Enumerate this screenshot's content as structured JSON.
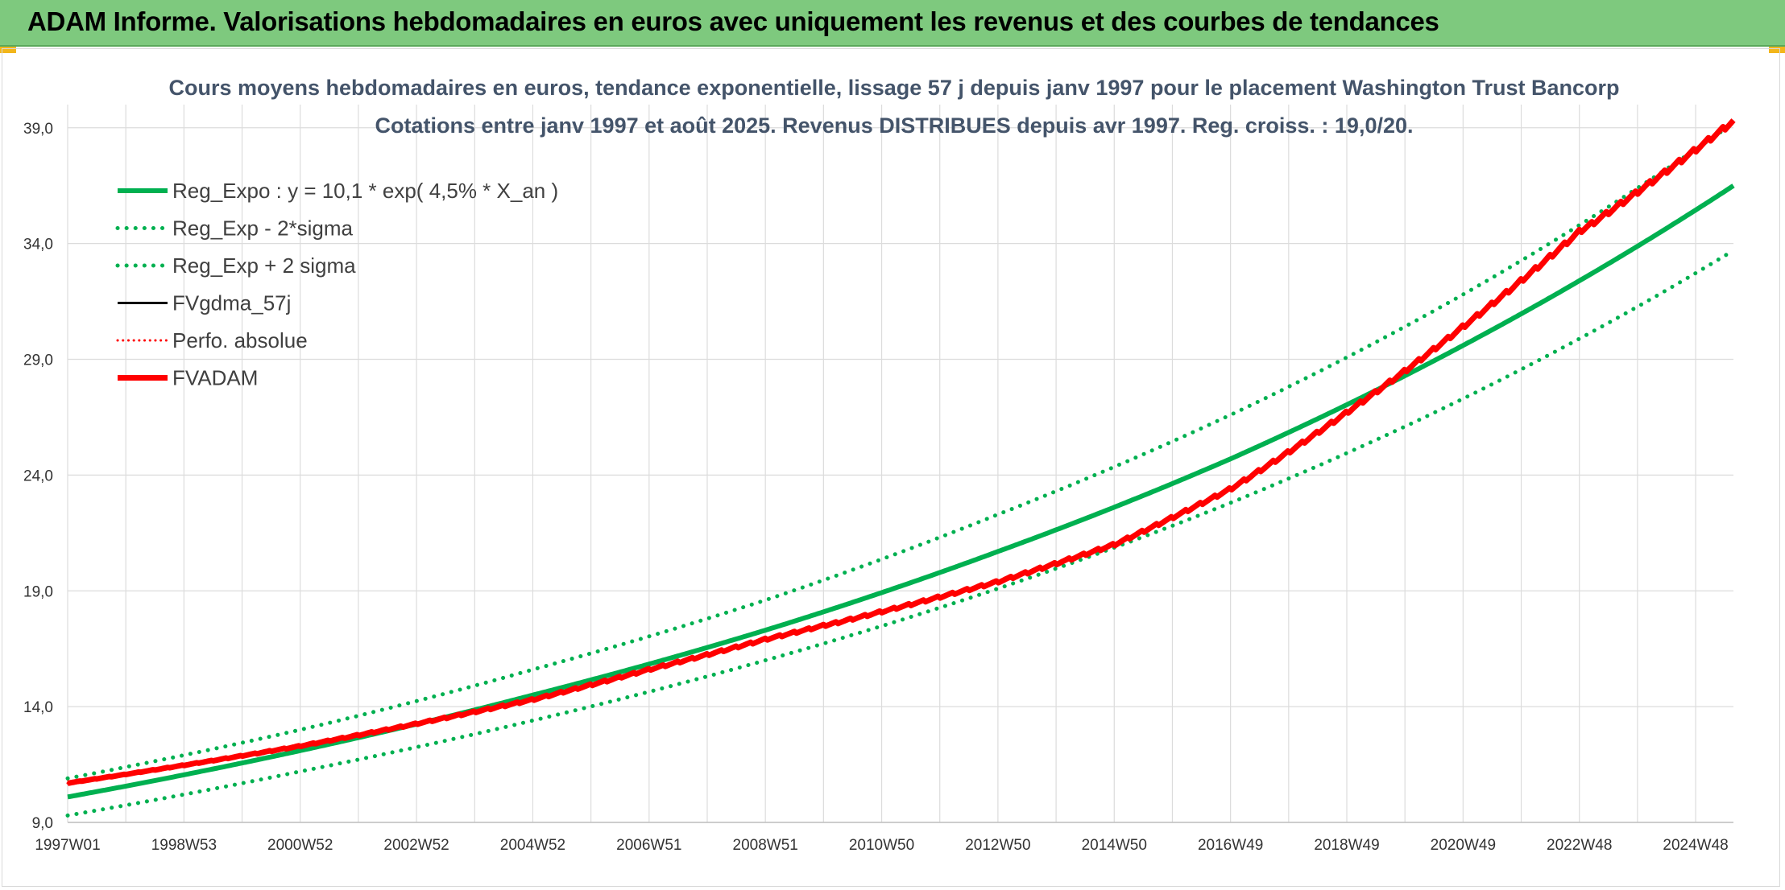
{
  "header": {
    "title": "ADAM Informe. Valorisations hebdomadaires en euros avec uniquement les revenus et des courbes de tendances"
  },
  "colors": {
    "header_bg": "#7ec97e",
    "green": "#00b050",
    "red": "#ff0000",
    "black": "#000000",
    "title_text": "#44546a"
  },
  "chart_data": {
    "type": "line",
    "title": "Cours moyens hebdomadaires en euros, tendance exponentielle, lissage 57 j depuis janv 1997 pour le placement Washington Trust Bancorp",
    "subtitle": "Cotations entre janv 1997 et août 2025. Revenus DISTRIBUES depuis avr 1997. Reg. croiss. : 19,0/20.",
    "xlabel": "",
    "ylabel": "",
    "x_tick_labels": [
      "1997W01",
      "1998W53",
      "2000W52",
      "2002W52",
      "2004W52",
      "2006W51",
      "2008W51",
      "2010W50",
      "2012W50",
      "2014W50",
      "2016W49",
      "2018W49",
      "2020W49",
      "2022W48",
      "2024W48"
    ],
    "x_ticks_year": [
      1997.0,
      1999.0,
      2001.0,
      2003.0,
      2005.0,
      2007.0,
      2009.0,
      2011.0,
      2013.0,
      2015.0,
      2017.0,
      2019.0,
      2021.0,
      2023.0,
      2025.0
    ],
    "xlim": [
      1997.0,
      2025.65
    ],
    "ylim": [
      9.0,
      40.0
    ],
    "y_ticks": [
      9.0,
      14.0,
      19.0,
      24.0,
      29.0,
      34.0,
      39.0
    ],
    "y_tick_labels": [
      "9,0",
      "14,0",
      "19,0",
      "24,0",
      "29,0",
      "34,0",
      "39,0"
    ],
    "grid": true,
    "legend_position": "top-left",
    "series": [
      {
        "name": "Reg_Expo : y = 10,1 * exp( 4,5% *  X_an )",
        "style": "solid",
        "color": "#00b050",
        "width": 6,
        "x": [
          1997.0,
          2001.0,
          2005.0,
          2009.0,
          2013.0,
          2017.0,
          2021.0,
          2025.65
        ],
        "y": [
          10.1,
          12.1,
          14.5,
          17.3,
          20.7,
          24.7,
          29.6,
          36.5
        ]
      },
      {
        "name": "Reg_Exp - 2*sigma",
        "style": "dotted",
        "color": "#00b050",
        "width": 5,
        "x": [
          1997.0,
          2001.0,
          2005.0,
          2009.0,
          2013.0,
          2017.0,
          2021.0,
          2025.65
        ],
        "y": [
          9.3,
          11.2,
          13.4,
          16.0,
          19.1,
          22.8,
          27.3,
          33.7
        ]
      },
      {
        "name": "Reg_Exp + 2 sigma",
        "style": "dotted",
        "color": "#00b050",
        "width": 5,
        "x": [
          1997.0,
          2001.0,
          2005.0,
          2009.0,
          2013.0,
          2017.0,
          2021.0,
          2025.65
        ],
        "y": [
          10.9,
          13.0,
          15.6,
          18.6,
          22.3,
          26.6,
          31.8,
          39.2
        ]
      },
      {
        "name": "FVgdma_57j",
        "style": "solid",
        "color": "#000000",
        "width": 3,
        "x": [
          1997.0,
          2001.0,
          2005.0,
          2007.0,
          2009.0,
          2013.0,
          2015.0,
          2017.0,
          2019.0,
          2021.0,
          2023.0,
          2025.65
        ],
        "y": [
          10.7,
          12.3,
          14.3,
          15.6,
          16.9,
          19.4,
          21.0,
          23.4,
          26.7,
          30.4,
          34.5,
          39.3
        ]
      },
      {
        "name": "Perfo. absolue",
        "style": "dotted",
        "color": "#ff0000",
        "width": 3,
        "x": [
          1997.0,
          2001.0,
          2005.0,
          2007.0,
          2009.0,
          2013.0,
          2015.0,
          2017.0,
          2019.0,
          2021.0,
          2023.0,
          2025.65
        ],
        "y": [
          10.7,
          12.3,
          14.3,
          15.6,
          16.9,
          19.4,
          21.0,
          23.4,
          26.7,
          30.4,
          34.5,
          39.3
        ]
      },
      {
        "name": "FVADAM",
        "style": "solid",
        "color": "#ff0000",
        "width": 7,
        "x": [
          1997.0,
          2001.0,
          2005.0,
          2007.0,
          2009.0,
          2013.0,
          2015.0,
          2017.0,
          2019.0,
          2021.0,
          2023.0,
          2025.65
        ],
        "y": [
          10.7,
          12.3,
          14.3,
          15.6,
          16.9,
          19.4,
          21.0,
          23.4,
          26.7,
          30.4,
          34.5,
          39.3
        ]
      }
    ]
  }
}
